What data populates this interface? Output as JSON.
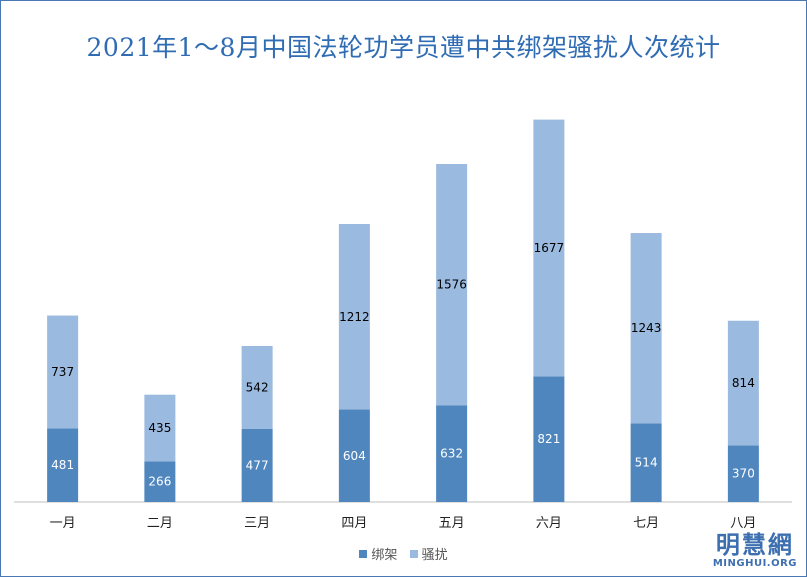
{
  "chart_data": {
    "type": "bar",
    "stacked": true,
    "title": "2021年1～8月中国法轮功学员遭中共绑架骚扰人次统计",
    "categories": [
      "一月",
      "二月",
      "三月",
      "四月",
      "五月",
      "六月",
      "七月",
      "八月"
    ],
    "series": [
      {
        "name": "绑架",
        "color": "#4f86be",
        "label_color": "#ffffff",
        "values": [
          481,
          266,
          477,
          604,
          632,
          821,
          514,
          370
        ]
      },
      {
        "name": "骚扰",
        "color": "#9bbadf",
        "label_color": "#000000",
        "values": [
          737,
          435,
          542,
          1212,
          1576,
          1677,
          1243,
          814
        ]
      }
    ],
    "ylim": [
      0,
      2600
    ],
    "grid": false,
    "legend_position": "bottom"
  },
  "watermark": {
    "name_cn": "明慧網",
    "name_en": "MINGHUI.ORG"
  }
}
